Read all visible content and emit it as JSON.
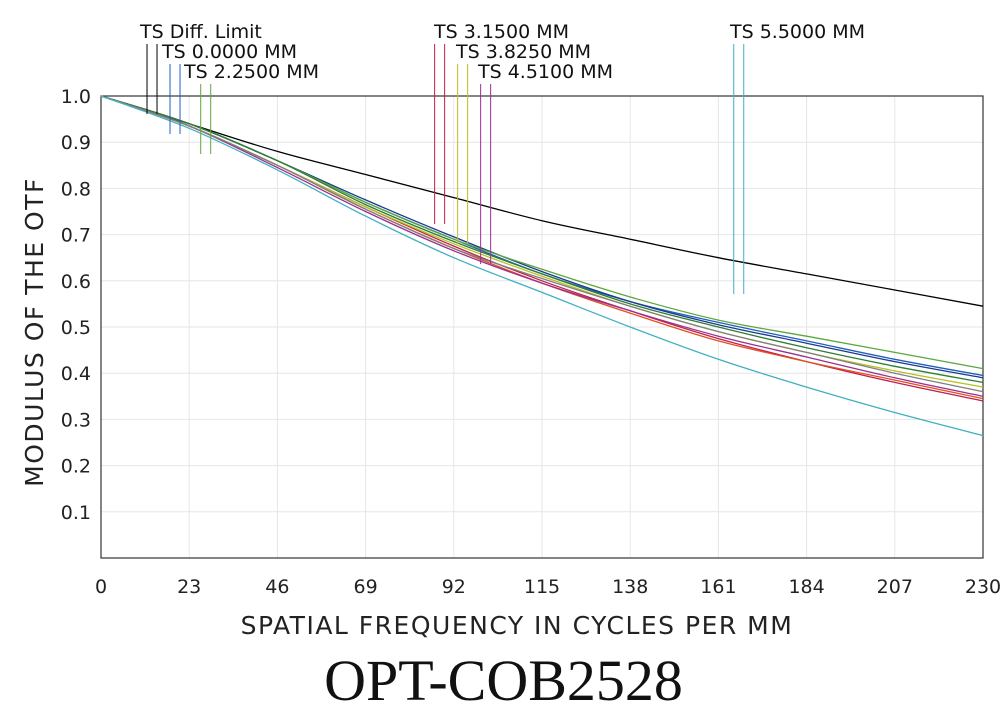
{
  "caption": "OPT-COB2528",
  "chart_data": {
    "type": "line",
    "title": "",
    "xlabel": "SPATIAL FREQUENCY IN CYCLES PER MM",
    "ylabel": "MODULUS OF THE OTF",
    "xlim": [
      0,
      230
    ],
    "ylim": [
      0,
      1.0
    ],
    "x_ticks": [
      "0",
      "23",
      "46",
      "69",
      "92",
      "115",
      "138",
      "161",
      "184",
      "207",
      "230"
    ],
    "y_ticks": [
      "0.1",
      "0.2",
      "0.3",
      "0.4",
      "0.5",
      "0.6",
      "0.7",
      "0.8",
      "0.9",
      "1.0"
    ],
    "grid": true,
    "x": [
      0,
      23,
      46,
      69,
      92,
      115,
      138,
      161,
      184,
      207,
      230
    ],
    "legend": [
      {
        "text": "TS  Diff. Limit",
        "color": "#000000",
        "marker_x": 12
      },
      {
        "text": "TS  0.0000  MM",
        "color": "#1f5fbf",
        "marker_x": 18
      },
      {
        "text": "TS  2.2500  MM",
        "color": "#5aa83c",
        "marker_x": 26
      },
      {
        "text": "TS  3.1500  MM",
        "color": "#c0204a",
        "marker_x": 87
      },
      {
        "text": "TS  3.8250  MM",
        "color": "#b8c020",
        "marker_x": 93
      },
      {
        "text": "TS  4.5100  MM",
        "color": "#9a3090",
        "marker_x": 99
      },
      {
        "text": "TS  5.5000  MM",
        "color": "#40b0c0",
        "marker_x": 165
      }
    ],
    "series": [
      {
        "color": "#000000",
        "values": [
          1.0,
          0.94,
          0.88,
          0.83,
          0.78,
          0.73,
          0.69,
          0.65,
          0.615,
          0.58,
          0.545
        ]
      },
      {
        "color": "#1f5fbf",
        "values": [
          1.0,
          0.94,
          0.86,
          0.77,
          0.69,
          0.615,
          0.555,
          0.51,
          0.47,
          0.43,
          0.395
        ]
      },
      {
        "color": "#1a3a8c",
        "values": [
          1.0,
          0.94,
          0.86,
          0.775,
          0.695,
          0.62,
          0.555,
          0.505,
          0.465,
          0.425,
          0.39
        ]
      },
      {
        "color": "#5aa83c",
        "values": [
          1.0,
          0.94,
          0.86,
          0.77,
          0.69,
          0.625,
          0.565,
          0.515,
          0.48,
          0.445,
          0.41
        ]
      },
      {
        "color": "#2e7d32",
        "values": [
          1.0,
          0.94,
          0.86,
          0.765,
          0.685,
          0.615,
          0.55,
          0.5,
          0.455,
          0.415,
          0.38
        ]
      },
      {
        "color": "#c0204a",
        "values": [
          1.0,
          0.935,
          0.85,
          0.76,
          0.675,
          0.6,
          0.535,
          0.475,
          0.425,
          0.38,
          0.34
        ]
      },
      {
        "color": "#e05020",
        "values": [
          1.0,
          0.935,
          0.85,
          0.755,
          0.67,
          0.595,
          0.53,
          0.47,
          0.425,
          0.385,
          0.345
        ]
      },
      {
        "color": "#b8c020",
        "values": [
          1.0,
          0.935,
          0.85,
          0.76,
          0.68,
          0.61,
          0.545,
          0.49,
          0.445,
          0.405,
          0.37
        ]
      },
      {
        "color": "#9a3090",
        "values": [
          1.0,
          0.935,
          0.845,
          0.75,
          0.665,
          0.595,
          0.535,
          0.48,
          0.435,
          0.39,
          0.35
        ]
      },
      {
        "color": "#808080",
        "values": [
          1.0,
          0.935,
          0.85,
          0.755,
          0.67,
          0.605,
          0.545,
          0.49,
          0.445,
          0.4,
          0.36
        ]
      },
      {
        "color": "#40b0c0",
        "values": [
          1.0,
          0.93,
          0.84,
          0.74,
          0.65,
          0.575,
          0.5,
          0.43,
          0.37,
          0.315,
          0.265
        ]
      }
    ]
  }
}
